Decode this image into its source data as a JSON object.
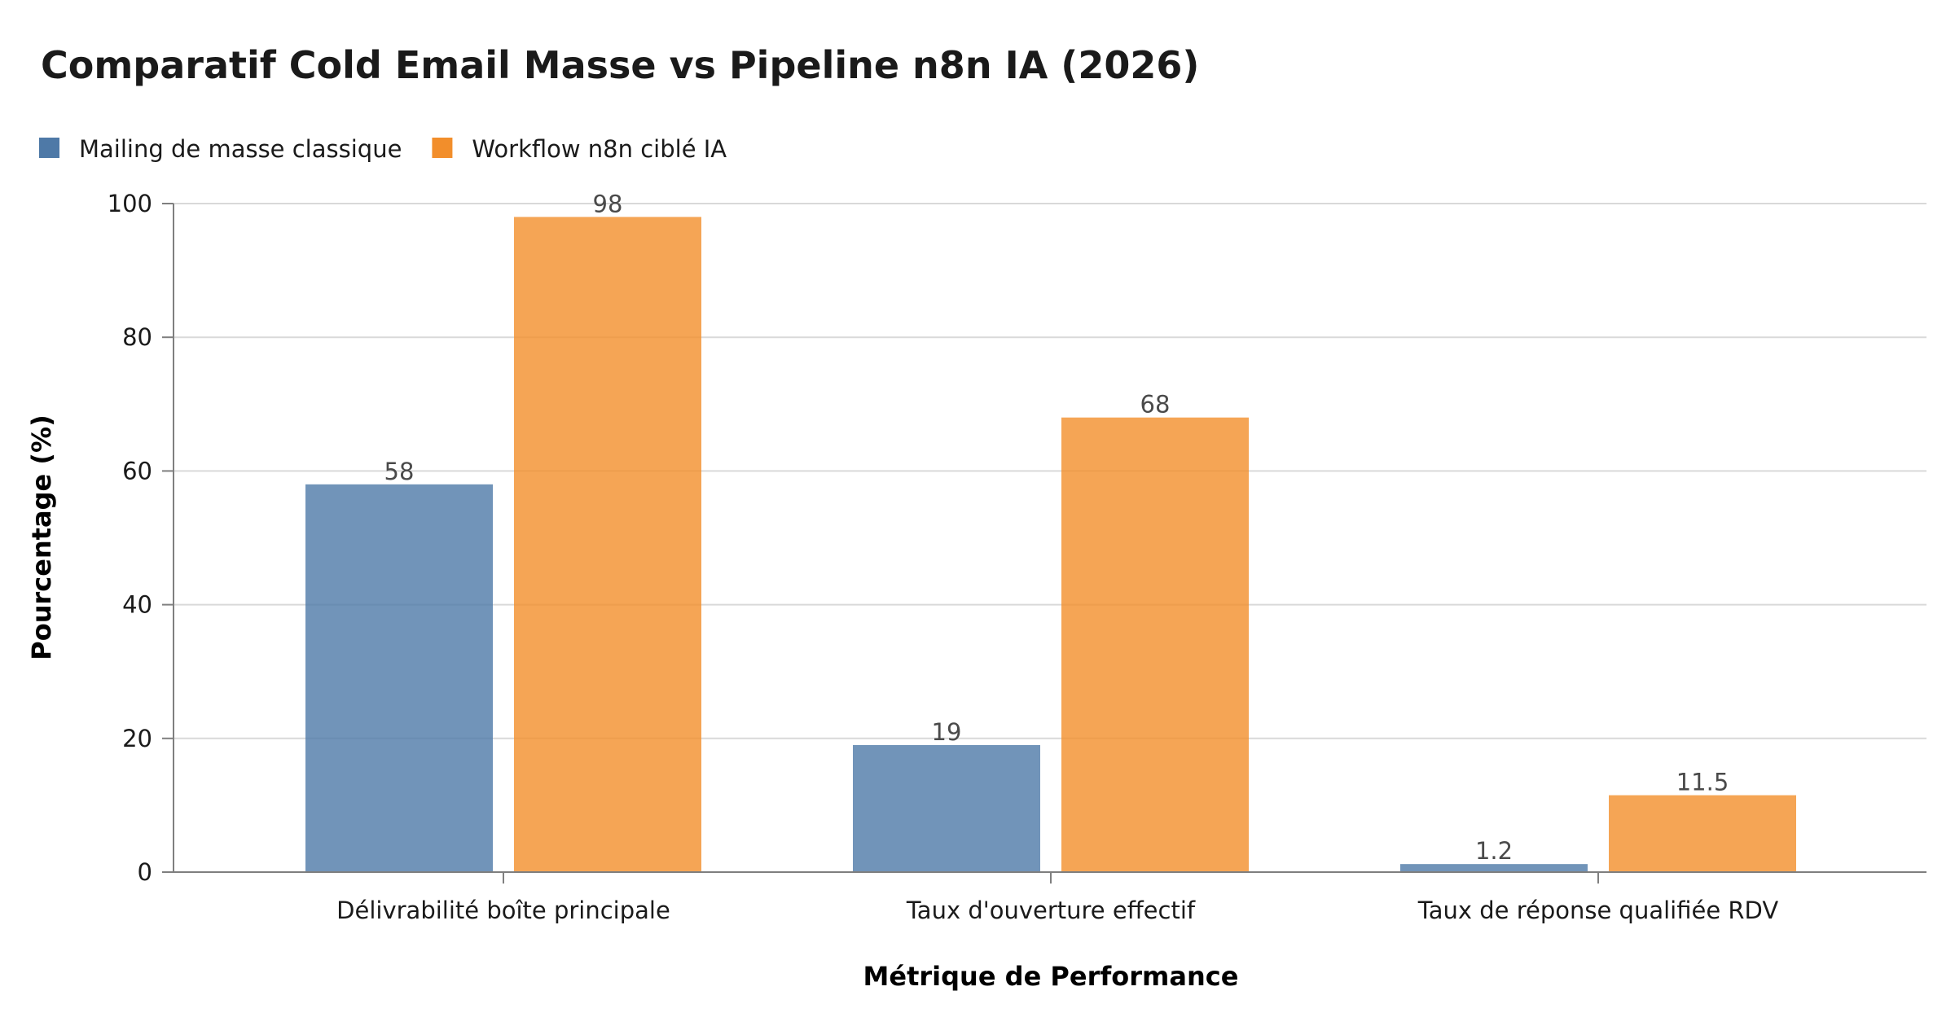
{
  "chart_data": {
    "type": "bar",
    "title": "Comparatif Cold Email Masse vs Pipeline n8n IA (2026)",
    "xlabel": "Métrique de Performance",
    "ylabel": "Pourcentage (%)",
    "categories": [
      "Délivrabilité boîte principale",
      "Taux d'ouverture effectif",
      "Taux de réponse qualifiée RDV"
    ],
    "series": [
      {
        "name": "Mailing de masse classique",
        "color": "#4e79a7",
        "values": [
          58,
          19,
          1.2
        ]
      },
      {
        "name": "Workflow n8n ciblé IA",
        "color": "#f28e2b",
        "values": [
          98,
          68,
          11.5
        ]
      }
    ],
    "ylim": [
      0,
      100
    ],
    "yticks": [
      0,
      20,
      40,
      60,
      80,
      100
    ],
    "grid": true,
    "legend_position": "top-left",
    "data_labels": true
  }
}
